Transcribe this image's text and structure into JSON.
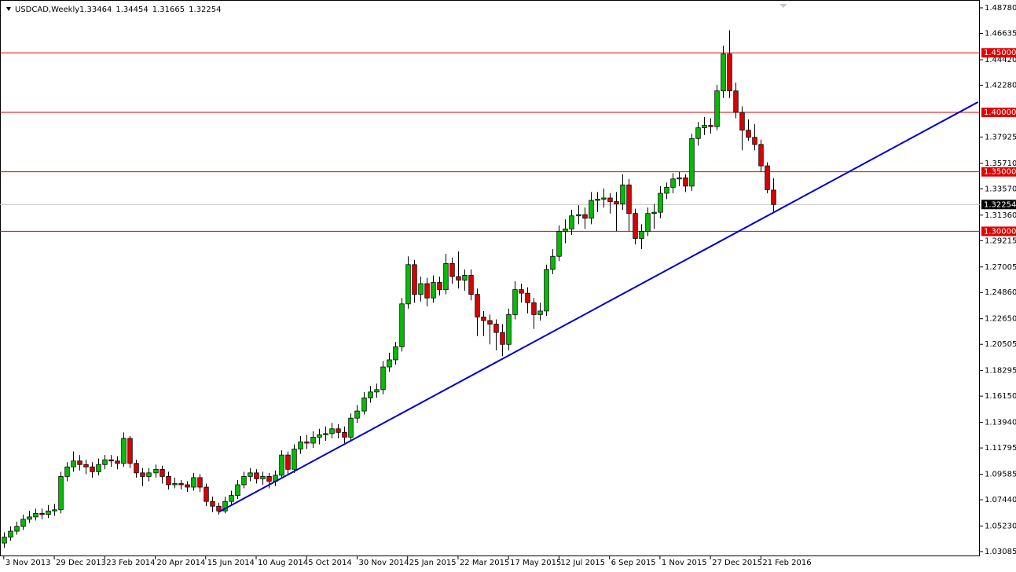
{
  "chart_data": {
    "type": "candlestick",
    "symbol": "USDCAD,Weekly",
    "header_ohlc": [
      1.33464,
      1.34454,
      1.31665,
      1.32254
    ],
    "ohlc": [
      [
        1.038,
        1.047,
        1.034,
        1.043
      ],
      [
        1.043,
        1.052,
        1.04,
        1.048
      ],
      [
        1.048,
        1.056,
        1.045,
        1.052
      ],
      [
        1.052,
        1.062,
        1.049,
        1.058
      ],
      [
        1.058,
        1.065,
        1.055,
        1.06
      ],
      [
        1.06,
        1.067,
        1.057,
        1.063
      ],
      [
        1.063,
        1.067,
        1.058,
        1.062
      ],
      [
        1.062,
        1.07,
        1.059,
        1.065
      ],
      [
        1.065,
        1.071,
        1.061,
        1.066
      ],
      [
        1.066,
        1.098,
        1.063,
        1.094
      ],
      [
        1.094,
        1.106,
        1.09,
        1.102
      ],
      [
        1.102,
        1.115,
        1.098,
        1.107
      ],
      [
        1.107,
        1.112,
        1.099,
        1.104
      ],
      [
        1.104,
        1.108,
        1.096,
        1.102
      ],
      [
        1.102,
        1.106,
        1.093,
        1.098
      ],
      [
        1.098,
        1.109,
        1.095,
        1.104
      ],
      [
        1.104,
        1.112,
        1.1,
        1.108
      ],
      [
        1.108,
        1.112,
        1.102,
        1.107
      ],
      [
        1.107,
        1.111,
        1.1,
        1.105
      ],
      [
        1.105,
        1.131,
        1.102,
        1.126
      ],
      [
        1.126,
        1.128,
        1.101,
        1.105
      ],
      [
        1.105,
        1.108,
        1.093,
        1.097
      ],
      [
        1.097,
        1.101,
        1.086,
        1.094
      ],
      [
        1.094,
        1.101,
        1.09,
        1.097
      ],
      [
        1.097,
        1.104,
        1.093,
        1.1
      ],
      [
        1.1,
        1.103,
        1.088,
        1.094
      ],
      [
        1.094,
        1.098,
        1.083,
        1.087
      ],
      [
        1.087,
        1.093,
        1.084,
        1.088
      ],
      [
        1.088,
        1.091,
        1.083,
        1.087
      ],
      [
        1.087,
        1.09,
        1.081,
        1.085
      ],
      [
        1.085,
        1.097,
        1.082,
        1.093
      ],
      [
        1.093,
        1.096,
        1.081,
        1.085
      ],
      [
        1.085,
        1.088,
        1.069,
        1.073
      ],
      [
        1.073,
        1.077,
        1.064,
        1.069
      ],
      [
        1.069,
        1.072,
        1.062,
        1.065
      ],
      [
        1.065,
        1.077,
        1.063,
        1.073
      ],
      [
        1.073,
        1.082,
        1.07,
        1.078
      ],
      [
        1.078,
        1.091,
        1.075,
        1.087
      ],
      [
        1.087,
        1.098,
        1.084,
        1.094
      ],
      [
        1.094,
        1.101,
        1.09,
        1.097
      ],
      [
        1.097,
        1.1,
        1.088,
        1.092
      ],
      [
        1.092,
        1.098,
        1.087,
        1.094
      ],
      [
        1.094,
        1.097,
        1.084,
        1.09
      ],
      [
        1.09,
        1.099,
        1.086,
        1.095
      ],
      [
        1.095,
        1.116,
        1.092,
        1.112
      ],
      [
        1.112,
        1.115,
        1.096,
        1.1
      ],
      [
        1.1,
        1.121,
        1.097,
        1.117
      ],
      [
        1.117,
        1.128,
        1.113,
        1.123
      ],
      [
        1.123,
        1.129,
        1.117,
        1.122
      ],
      [
        1.122,
        1.132,
        1.118,
        1.127
      ],
      [
        1.127,
        1.134,
        1.121,
        1.129
      ],
      [
        1.129,
        1.136,
        1.124,
        1.13
      ],
      [
        1.13,
        1.139,
        1.126,
        1.134
      ],
      [
        1.134,
        1.138,
        1.126,
        1.131
      ],
      [
        1.131,
        1.136,
        1.122,
        1.127
      ],
      [
        1.127,
        1.147,
        1.124,
        1.143
      ],
      [
        1.143,
        1.154,
        1.139,
        1.149
      ],
      [
        1.149,
        1.165,
        1.146,
        1.16
      ],
      [
        1.16,
        1.17,
        1.156,
        1.165
      ],
      [
        1.165,
        1.172,
        1.16,
        1.167
      ],
      [
        1.167,
        1.191,
        1.163,
        1.186
      ],
      [
        1.186,
        1.198,
        1.182,
        1.192
      ],
      [
        1.192,
        1.207,
        1.188,
        1.203
      ],
      [
        1.203,
        1.244,
        1.199,
        1.239
      ],
      [
        1.239,
        1.279,
        1.235,
        1.272
      ],
      [
        1.272,
        1.276,
        1.24,
        1.247
      ],
      [
        1.247,
        1.262,
        1.241,
        1.256
      ],
      [
        1.256,
        1.261,
        1.237,
        1.244
      ],
      [
        1.244,
        1.263,
        1.24,
        1.257
      ],
      [
        1.257,
        1.262,
        1.246,
        1.251
      ],
      [
        1.251,
        1.281,
        1.247,
        1.273
      ],
      [
        1.273,
        1.278,
        1.256,
        1.262
      ],
      [
        1.262,
        1.283,
        1.252,
        1.259
      ],
      [
        1.259,
        1.268,
        1.25,
        1.263
      ],
      [
        1.263,
        1.268,
        1.242,
        1.247
      ],
      [
        1.247,
        1.252,
        1.212,
        1.228
      ],
      [
        1.228,
        1.233,
        1.212,
        1.225
      ],
      [
        1.225,
        1.23,
        1.205,
        1.222
      ],
      [
        1.222,
        1.226,
        1.2,
        1.215
      ],
      [
        1.215,
        1.222,
        1.195,
        1.205
      ],
      [
        1.205,
        1.235,
        1.2,
        1.23
      ],
      [
        1.23,
        1.258,
        1.226,
        1.251
      ],
      [
        1.251,
        1.256,
        1.24,
        1.248
      ],
      [
        1.248,
        1.253,
        1.231,
        1.24
      ],
      [
        1.24,
        1.244,
        1.218,
        1.23
      ],
      [
        1.23,
        1.24,
        1.225,
        1.233
      ],
      [
        1.233,
        1.272,
        1.229,
        1.268
      ],
      [
        1.268,
        1.285,
        1.264,
        1.279
      ],
      [
        1.279,
        1.305,
        1.275,
        1.3
      ],
      [
        1.3,
        1.31,
        1.29,
        1.302
      ],
      [
        1.302,
        1.318,
        1.297,
        1.313
      ],
      [
        1.313,
        1.322,
        1.306,
        1.314
      ],
      [
        1.314,
        1.32,
        1.302,
        1.311
      ],
      [
        1.311,
        1.333,
        1.306,
        1.326
      ],
      [
        1.326,
        1.333,
        1.316,
        1.327
      ],
      [
        1.327,
        1.336,
        1.32,
        1.328
      ],
      [
        1.328,
        1.332,
        1.315,
        1.325
      ],
      [
        1.325,
        1.333,
        1.3,
        1.323
      ],
      [
        1.323,
        1.348,
        1.318,
        1.339
      ],
      [
        1.339,
        1.344,
        1.3,
        1.315
      ],
      [
        1.315,
        1.319,
        1.289,
        1.294
      ],
      [
        1.294,
        1.306,
        1.285,
        1.3
      ],
      [
        1.3,
        1.32,
        1.296,
        1.315
      ],
      [
        1.315,
        1.323,
        1.302,
        1.316
      ],
      [
        1.316,
        1.338,
        1.311,
        1.332
      ],
      [
        1.332,
        1.341,
        1.327,
        1.337
      ],
      [
        1.337,
        1.349,
        1.332,
        1.344
      ],
      [
        1.344,
        1.35,
        1.338,
        1.345
      ],
      [
        1.345,
        1.348,
        1.333,
        1.338
      ],
      [
        1.338,
        1.382,
        1.334,
        1.378
      ],
      [
        1.378,
        1.392,
        1.372,
        1.387
      ],
      [
        1.387,
        1.396,
        1.381,
        1.389
      ],
      [
        1.389,
        1.395,
        1.382,
        1.388
      ],
      [
        1.388,
        1.423,
        1.385,
        1.418
      ],
      [
        1.418,
        1.456,
        1.412,
        1.449
      ],
      [
        1.449,
        1.469,
        1.412,
        1.418
      ],
      [
        1.418,
        1.425,
        1.395,
        1.4
      ],
      [
        1.4,
        1.405,
        1.368,
        1.385
      ],
      [
        1.385,
        1.394,
        1.376,
        1.379
      ],
      [
        1.379,
        1.39,
        1.368,
        1.373
      ],
      [
        1.373,
        1.377,
        1.35,
        1.355
      ],
      [
        1.355,
        1.358,
        1.332,
        1.335
      ],
      [
        1.33464,
        1.34454,
        1.31665,
        1.32254
      ]
    ],
    "bull_color": "#00c000",
    "bear_color": "#dc0000",
    "xlim": [
      -0.6,
      154.7
    ],
    "ylim": [
      1.0269,
      1.4944
    ],
    "xticks": [
      {
        "value": 0,
        "label": "3 Nov 2013"
      },
      {
        "value": 8,
        "label": "29 Dec 2013"
      },
      {
        "value": 16,
        "label": "23 Feb 2014"
      },
      {
        "value": 24,
        "label": "20 Apr 2014"
      },
      {
        "value": 32,
        "label": "15 Jun 2014"
      },
      {
        "value": 40,
        "label": "10 Aug 2014"
      },
      {
        "value": 48,
        "label": "5 Oct 2014"
      },
      {
        "value": 56,
        "label": "30 Nov 2014"
      },
      {
        "value": 64,
        "label": "25 Jan 2015"
      },
      {
        "value": 72,
        "label": "22 Mar 2015"
      },
      {
        "value": 80,
        "label": "17 May 2015"
      },
      {
        "value": 88,
        "label": "12 Jul 2015"
      },
      {
        "value": 96,
        "label": "6 Sep 2015"
      },
      {
        "value": 104,
        "label": "1 Nov 2015"
      },
      {
        "value": 112,
        "label": "27 Dec 2015"
      },
      {
        "value": 120,
        "label": "21 Feb 2016"
      }
    ],
    "yticks": [
      {
        "value": 1.4878,
        "label": "1.48780"
      },
      1.46635,
      {
        "value": 1.4442,
        "label": "1.44420"
      },
      {
        "value": 1.4228,
        "label": "1.42280"
      },
      1.37925,
      {
        "value": 1.3571,
        "label": "1.35710"
      },
      {
        "value": 1.3357,
        "label": "1.33570"
      },
      {
        "value": 1.3136,
        "label": "1.31360"
      },
      1.29215,
      1.27005,
      {
        "value": 1.2486,
        "label": "1.24860"
      },
      {
        "value": 1.2265,
        "label": "1.22650"
      },
      1.20505,
      1.18295,
      {
        "value": 1.1615,
        "label": "1.16150"
      },
      {
        "value": 1.1394,
        "label": "1.13940"
      },
      1.11795,
      1.09585,
      {
        "value": 1.0744,
        "label": "1.07440"
      },
      {
        "value": 1.0523,
        "label": "1.05230"
      },
      1.03085
    ],
    "levels": [
      {
        "value": 1.45,
        "label": "1.45000"
      },
      {
        "value": 1.4,
        "label": "1.40000"
      },
      {
        "value": 1.35,
        "label": "1.35000"
      },
      {
        "value": 1.3,
        "label": "1.30000"
      }
    ],
    "level_color": "#e00000",
    "current_price": 1.32254,
    "trendline": {
      "x": [
        34,
        154.4
      ],
      "y": [
        1.0639,
        1.4086
      ],
      "color": "#0000cc"
    }
  }
}
